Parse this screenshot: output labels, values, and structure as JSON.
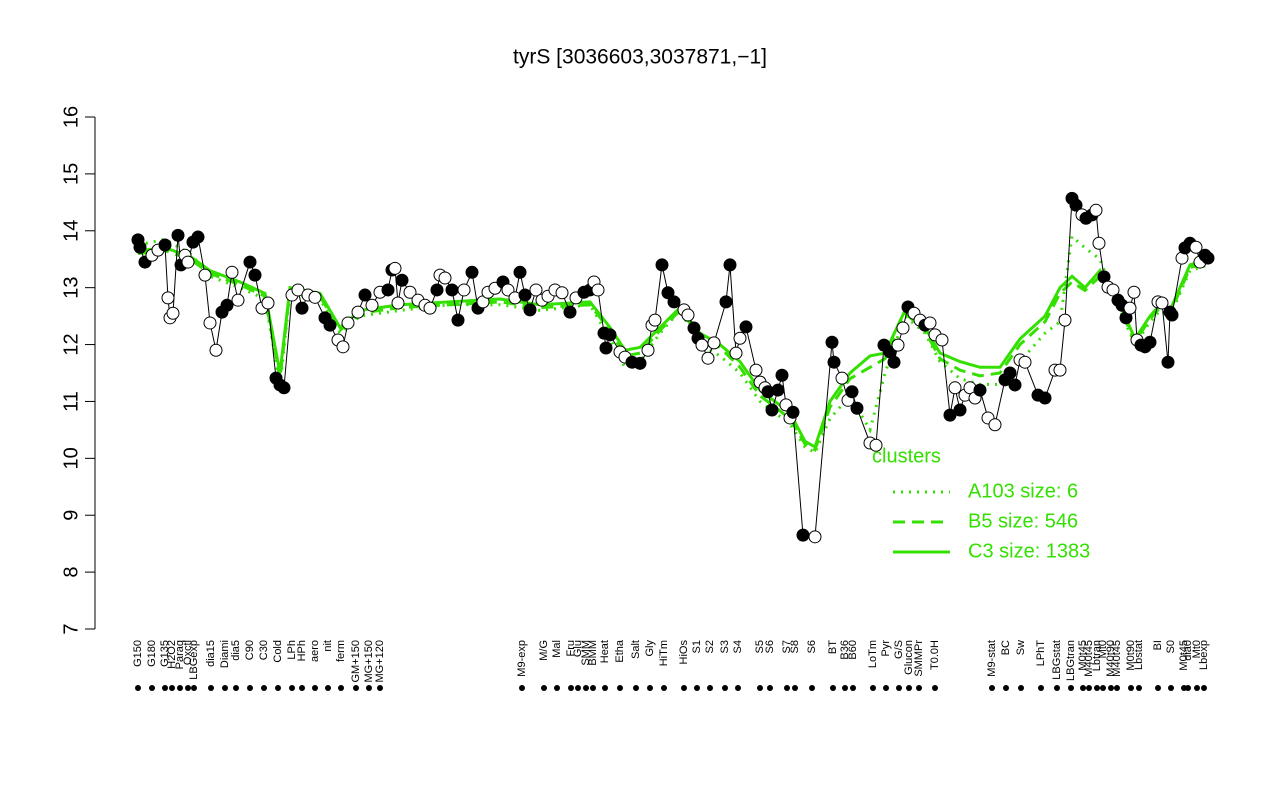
{
  "chart_data": {
    "type": "scatter",
    "title": "tyrS [3036603,3037871,−1]",
    "xlim": [
      95,
      1230
    ],
    "ylim": [
      7,
      16
    ],
    "yticks": [
      7,
      8,
      9,
      10,
      11,
      12,
      13,
      14,
      15,
      16
    ],
    "point_color": "#000000",
    "x": [
      138,
      140,
      145,
      152,
      158,
      165,
      168,
      170,
      173,
      178,
      181,
      185,
      188,
      193,
      198,
      205,
      210,
      216,
      222,
      227,
      232,
      238,
      250,
      255,
      262,
      268,
      276,
      280,
      284,
      292,
      298,
      302,
      308,
      315,
      325,
      330,
      338,
      343,
      348,
      358,
      365,
      372,
      380,
      388,
      392,
      395,
      398,
      402,
      410,
      418,
      425,
      430,
      437,
      440,
      445,
      452,
      458,
      464,
      472,
      478,
      483,
      488,
      495,
      503,
      508,
      515,
      520,
      525,
      530,
      536,
      542,
      548,
      555,
      562,
      570,
      576,
      584,
      590,
      594,
      598,
      604,
      606,
      610,
      620,
      625,
      632,
      640,
      648,
      652,
      655,
      662,
      668,
      674,
      684,
      688,
      694,
      698,
      702,
      708,
      714,
      726,
      730,
      736,
      740,
      746,
      756,
      760,
      765,
      768,
      772,
      778,
      782,
      786,
      790,
      793,
      803,
      815,
      832,
      834,
      842,
      848,
      852,
      857,
      870,
      876,
      884,
      890,
      894,
      898,
      903,
      908,
      914,
      920,
      925,
      930,
      935,
      942,
      950,
      955,
      960,
      965,
      970,
      975,
      980,
      988,
      995,
      1005,
      1010,
      1015,
      1020,
      1025,
      1038,
      1045,
      1055,
      1060,
      1065,
      1072,
      1076,
      1082,
      1086,
      1092,
      1096,
      1099,
      1104,
      1108,
      1113,
      1118,
      1122,
      1126,
      1130,
      1134,
      1137,
      1141,
      1145,
      1150,
      1158,
      1162,
      1168,
      1170,
      1172,
      1182,
      1185,
      1190,
      1196,
      1200,
      1205,
      1208
    ],
    "values": [
      13.84,
      13.71,
      13.45,
      13.57,
      13.66,
      13.75,
      12.82,
      12.47,
      12.55,
      13.92,
      13.4,
      13.57,
      13.45,
      13.8,
      13.89,
      13.22,
      12.38,
      11.9,
      12.57,
      12.69,
      13.27,
      12.78,
      13.45,
      13.22,
      12.64,
      12.73,
      11.41,
      11.29,
      11.24,
      12.87,
      12.96,
      12.64,
      12.87,
      12.83,
      12.47,
      12.34,
      12.08,
      11.96,
      12.38,
      12.57,
      12.87,
      12.69,
      12.92,
      12.96,
      13.31,
      13.34,
      12.73,
      13.13,
      12.92,
      12.78,
      12.69,
      12.64,
      12.96,
      13.22,
      13.17,
      12.96,
      12.43,
      12.96,
      13.27,
      12.64,
      12.75,
      12.92,
      12.99,
      13.1,
      12.96,
      12.82,
      13.27,
      12.87,
      12.61,
      12.96,
      12.78,
      12.85,
      12.96,
      12.91,
      12.57,
      12.82,
      12.92,
      12.96,
      13.1,
      12.96,
      12.2,
      11.94,
      12.17,
      11.87,
      11.78,
      11.69,
      11.67,
      11.9,
      12.34,
      12.43,
      13.4,
      12.91,
      12.75,
      12.61,
      12.52,
      12.29,
      12.11,
      11.99,
      11.76,
      12.03,
      12.75,
      13.4,
      11.85,
      12.11,
      12.31,
      11.55,
      11.34,
      11.24,
      11.17,
      10.85,
      11.2,
      11.46,
      10.94,
      10.71,
      10.81,
      8.65,
      8.62,
      12.04,
      11.69,
      11.41,
      11.02,
      11.17,
      10.88,
      10.27,
      10.23,
      11.99,
      11.87,
      11.69,
      11.99,
      12.29,
      12.66,
      12.55,
      12.43,
      12.34,
      12.38,
      12.17,
      12.08,
      10.76,
      11.24,
      10.85,
      11.11,
      11.24,
      11.06,
      11.2,
      10.71,
      10.59,
      11.38,
      11.5,
      11.29,
      11.73,
      11.69,
      11.11,
      11.06,
      11.55,
      11.55,
      12.43,
      14.57,
      14.45,
      14.28,
      14.22,
      14.28,
      14.36,
      13.78,
      13.19,
      13.01,
      12.96,
      12.78,
      12.69,
      12.47,
      12.64,
      12.92,
      12.08,
      11.99,
      11.96,
      12.04,
      12.75,
      12.73,
      11.69,
      12.57,
      12.52,
      13.52,
      13.7,
      13.78,
      13.71,
      13.45,
      13.57,
      13.52
    ],
    "filled": [
      true,
      true,
      true,
      false,
      false,
      true,
      false,
      false,
      false,
      true,
      true,
      false,
      false,
      true,
      true,
      false,
      false,
      false,
      true,
      true,
      false,
      false,
      true,
      true,
      false,
      false,
      true,
      true,
      true,
      false,
      false,
      true,
      false,
      false,
      true,
      true,
      false,
      false,
      false,
      false,
      true,
      false,
      false,
      true,
      true,
      false,
      false,
      true,
      false,
      false,
      false,
      false,
      true,
      false,
      false,
      true,
      true,
      false,
      true,
      true,
      false,
      false,
      false,
      true,
      false,
      false,
      true,
      true,
      true,
      false,
      false,
      false,
      false,
      false,
      true,
      false,
      true,
      true,
      false,
      false,
      true,
      true,
      true,
      false,
      false,
      true,
      true,
      false,
      false,
      false,
      true,
      true,
      true,
      false,
      false,
      true,
      true,
      false,
      false,
      false,
      true,
      true,
      false,
      false,
      true,
      false,
      false,
      false,
      true,
      true,
      true,
      true,
      false,
      false,
      true,
      true,
      false,
      true,
      true,
      false,
      false,
      true,
      true,
      false,
      false,
      true,
      true,
      true,
      false,
      false,
      true,
      false,
      false,
      true,
      false,
      false,
      false,
      true,
      false,
      true,
      false,
      false,
      false,
      true,
      false,
      false,
      true,
      true,
      true,
      false,
      false,
      true,
      true,
      false,
      false,
      false,
      true,
      true,
      false,
      true,
      true,
      false,
      false,
      true,
      false,
      false,
      true,
      true,
      true,
      false,
      false,
      false,
      true,
      true,
      true,
      false,
      false,
      true,
      true,
      true,
      false,
      true,
      true,
      false,
      false,
      true,
      true
    ],
    "cluster_lines": {
      "title": "clusters",
      "color": "#33e000",
      "series": [
        {
          "name": "A103 size: 6",
          "style": "dotted",
          "x": [
            138,
            165,
            190,
            210,
            240,
            265,
            280,
            290,
            320,
            340,
            360,
            400,
            450,
            500,
            540,
            590,
            610,
            625,
            640,
            660,
            680,
            700,
            720,
            740,
            760,
            790,
            805,
            815,
            830,
            850,
            870,
            885,
            905,
            925,
            940,
            960,
            980,
            1000,
            1020,
            1045,
            1060,
            1072,
            1085,
            1100,
            1115,
            1135,
            1150,
            1160,
            1170,
            1190,
            1208
          ],
          "values": [
            13.75,
            13.85,
            13.6,
            13.2,
            13.0,
            12.8,
            11.3,
            12.9,
            12.8,
            12.2,
            12.5,
            12.6,
            12.7,
            12.7,
            12.6,
            12.7,
            12.1,
            11.6,
            11.7,
            12.2,
            12.6,
            12.0,
            11.8,
            11.5,
            11.0,
            10.6,
            10.2,
            10.1,
            10.7,
            11.1,
            10.5,
            11.5,
            12.5,
            12.2,
            11.7,
            11.4,
            11.3,
            11.3,
            11.7,
            12.2,
            12.4,
            13.9,
            13.7,
            13.5,
            12.8,
            12.0,
            12.4,
            12.6,
            12.5,
            13.3,
            13.4
          ]
        },
        {
          "name": "B5 size: 546",
          "style": "dashed",
          "x": [
            138,
            165,
            190,
            210,
            240,
            265,
            280,
            290,
            320,
            340,
            360,
            400,
            450,
            500,
            540,
            590,
            610,
            625,
            640,
            660,
            680,
            700,
            720,
            740,
            760,
            790,
            805,
            815,
            830,
            850,
            870,
            885,
            905,
            925,
            940,
            960,
            980,
            1000,
            1020,
            1045,
            1060,
            1072,
            1085,
            1100,
            1115,
            1135,
            1150,
            1160,
            1170,
            1190,
            1208
          ],
          "values": [
            13.6,
            13.65,
            13.5,
            13.25,
            13.05,
            12.85,
            11.4,
            12.95,
            12.85,
            12.25,
            12.55,
            12.65,
            12.7,
            12.75,
            12.65,
            12.7,
            12.25,
            11.8,
            11.85,
            12.25,
            12.6,
            12.15,
            11.95,
            11.6,
            11.1,
            10.7,
            10.25,
            10.15,
            10.9,
            11.4,
            11.6,
            11.75,
            12.55,
            12.25,
            11.75,
            11.55,
            11.45,
            11.5,
            12.0,
            12.4,
            12.9,
            13.1,
            12.95,
            13.2,
            12.85,
            12.05,
            12.45,
            12.65,
            12.55,
            13.35,
            13.45
          ]
        },
        {
          "name": "C3 size: 1383",
          "style": "solid",
          "x": [
            138,
            165,
            190,
            210,
            240,
            265,
            280,
            290,
            320,
            340,
            360,
            400,
            450,
            500,
            540,
            590,
            610,
            625,
            640,
            660,
            680,
            700,
            720,
            740,
            760,
            790,
            805,
            815,
            830,
            850,
            870,
            885,
            905,
            925,
            940,
            960,
            980,
            1000,
            1020,
            1045,
            1060,
            1072,
            1085,
            1100,
            1115,
            1135,
            1150,
            1160,
            1170,
            1190,
            1208
          ],
          "values": [
            13.65,
            13.7,
            13.55,
            13.3,
            13.1,
            12.9,
            11.5,
            13.0,
            12.9,
            12.3,
            12.6,
            12.7,
            12.75,
            12.8,
            12.7,
            12.75,
            12.3,
            11.9,
            11.95,
            12.3,
            12.65,
            12.2,
            12.0,
            11.7,
            11.2,
            10.8,
            10.3,
            10.2,
            11.0,
            11.5,
            11.8,
            11.85,
            12.6,
            12.3,
            11.85,
            11.7,
            11.6,
            11.6,
            12.1,
            12.5,
            13.0,
            13.2,
            13.0,
            13.3,
            12.9,
            12.1,
            12.5,
            12.7,
            12.6,
            13.4,
            13.5
          ]
        }
      ]
    },
    "category_labels": [
      {
        "x": 138,
        "label": "G150"
      },
      {
        "x": 152,
        "label": "G180"
      },
      {
        "x": 165,
        "label": "G135"
      },
      {
        "x": 172,
        "label": "H2O2"
      },
      {
        "x": 180,
        "label": "Paraq"
      },
      {
        "x": 188,
        "label": "Oxctl"
      },
      {
        "x": 194,
        "label": "LBGexp"
      },
      {
        "x": 211,
        "label": "dia15"
      },
      {
        "x": 225,
        "label": "Diami"
      },
      {
        "x": 236,
        "label": "dia5"
      },
      {
        "x": 250,
        "label": "C90"
      },
      {
        "x": 264,
        "label": "C30"
      },
      {
        "x": 278,
        "label": "Cold"
      },
      {
        "x": 292,
        "label": "LPh"
      },
      {
        "x": 302,
        "label": "HPh"
      },
      {
        "x": 315,
        "label": "aero"
      },
      {
        "x": 328,
        "label": "nit"
      },
      {
        "x": 341,
        "label": "ferm"
      },
      {
        "x": 356,
        "label": "GM+150"
      },
      {
        "x": 369,
        "label": "MG+150"
      },
      {
        "x": 380,
        "label": "MG+120"
      },
      {
        "x": 522,
        "label": "M9-exp"
      },
      {
        "x": 544,
        "label": "M/G"
      },
      {
        "x": 557,
        "label": "Mal"
      },
      {
        "x": 571,
        "label": "Fru"
      },
      {
        "x": 578,
        "label": "Glu"
      },
      {
        "x": 586,
        "label": "SMM"
      },
      {
        "x": 593,
        "label": "BMM"
      },
      {
        "x": 605,
        "label": "Heat"
      },
      {
        "x": 620,
        "label": "Etha"
      },
      {
        "x": 636,
        "label": "Salt"
      },
      {
        "x": 650,
        "label": "Gly"
      },
      {
        "x": 664,
        "label": "HiTm"
      },
      {
        "x": 684,
        "label": "HiOs"
      },
      {
        "x": 697,
        "label": "S1"
      },
      {
        "x": 710,
        "label": "S2"
      },
      {
        "x": 725,
        "label": "S3"
      },
      {
        "x": 738,
        "label": "S4"
      },
      {
        "x": 760,
        "label": "S5"
      },
      {
        "x": 770,
        "label": "S6"
      },
      {
        "x": 787,
        "label": "S7"
      },
      {
        "x": 795,
        "label": "S8"
      },
      {
        "x": 812,
        "label": "S6"
      },
      {
        "x": 833,
        "label": "BT"
      },
      {
        "x": 845,
        "label": "B36"
      },
      {
        "x": 853,
        "label": "B60"
      },
      {
        "x": 873,
        "label": "LoTm"
      },
      {
        "x": 886,
        "label": "Pyr"
      },
      {
        "x": 899,
        "label": "G/S"
      },
      {
        "x": 909,
        "label": "Glucon"
      },
      {
        "x": 919,
        "label": "SMMPr"
      },
      {
        "x": 935,
        "label": "T0.0H"
      },
      {
        "x": 992,
        "label": "M9-stat"
      },
      {
        "x": 1006,
        "label": "BC"
      },
      {
        "x": 1021,
        "label": "Sw"
      },
      {
        "x": 1041,
        "label": "LPhT"
      },
      {
        "x": 1057,
        "label": "LBGstat"
      },
      {
        "x": 1071,
        "label": "LBGtran"
      },
      {
        "x": 1083,
        "label": "M0t45"
      },
      {
        "x": 1089,
        "label": "M40t45"
      },
      {
        "x": 1097,
        "label": "Lbtran"
      },
      {
        "x": 1103,
        "label": "Mt0"
      },
      {
        "x": 1111,
        "label": "M40t90"
      },
      {
        "x": 1117,
        "label": "M40t45"
      },
      {
        "x": 1131,
        "label": "M0t90"
      },
      {
        "x": 1139,
        "label": "Lbstat"
      },
      {
        "x": 1158,
        "label": "BI"
      },
      {
        "x": 1171,
        "label": "S0"
      },
      {
        "x": 1184,
        "label": "M0t45"
      },
      {
        "x": 1188,
        "label": "dia0"
      },
      {
        "x": 1197,
        "label": "Mt0"
      },
      {
        "x": 1204,
        "label": "Lbexp"
      }
    ]
  }
}
